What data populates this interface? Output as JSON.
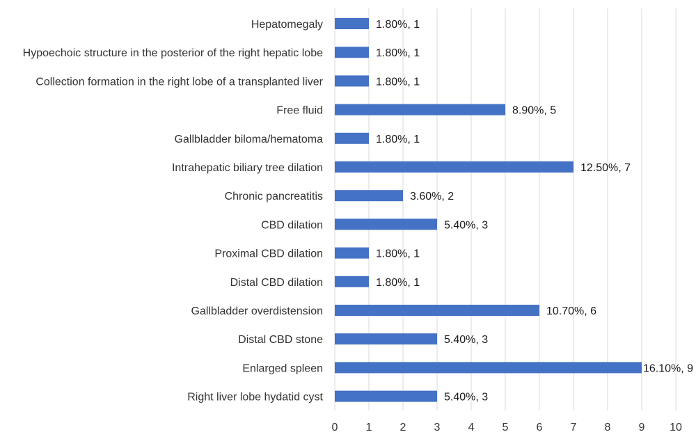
{
  "chart_data": {
    "type": "bar",
    "orientation": "horizontal",
    "categories": [
      "Hepatomegaly",
      "Hypoechoic structure in the posterior of the right hepatic lobe",
      "Collection formation in the right lobe of a transplanted liver",
      "Free fluid",
      "Gallbladder biloma/hematoma",
      "Intrahepatic biliary tree dilation",
      "Chronic pancreatitis",
      "CBD dilation",
      "Proximal CBD dilation",
      "Distal CBD dilation",
      "Gallbladder overdistension",
      "Distal CBD stone",
      "Enlarged spleen",
      "Right liver lobe hydatid cyst"
    ],
    "values": [
      1,
      1,
      1,
      5,
      1,
      7,
      2,
      3,
      1,
      1,
      6,
      3,
      9,
      3
    ],
    "data_labels": [
      "1.80%, 1",
      "1.80%, 1",
      "1.80%, 1",
      "8.90%, 5",
      "1.80%, 1",
      "12.50%, 7",
      "3.60%, 2",
      "5.40%, 3",
      "1.80%, 1",
      "1.80%, 1",
      "10.70%, 6",
      "5.40%, 3",
      "16.10%, 9",
      "5.40%, 3"
    ],
    "xlim": [
      0,
      10
    ],
    "xticks": [
      "0",
      "1",
      "2",
      "3",
      "4",
      "5",
      "6",
      "7",
      "8",
      "9",
      "10"
    ],
    "grid": true,
    "title": "",
    "xlabel": "",
    "ylabel": "",
    "bar_color": "#4472c4",
    "grid_color": "#d9d9d9"
  }
}
